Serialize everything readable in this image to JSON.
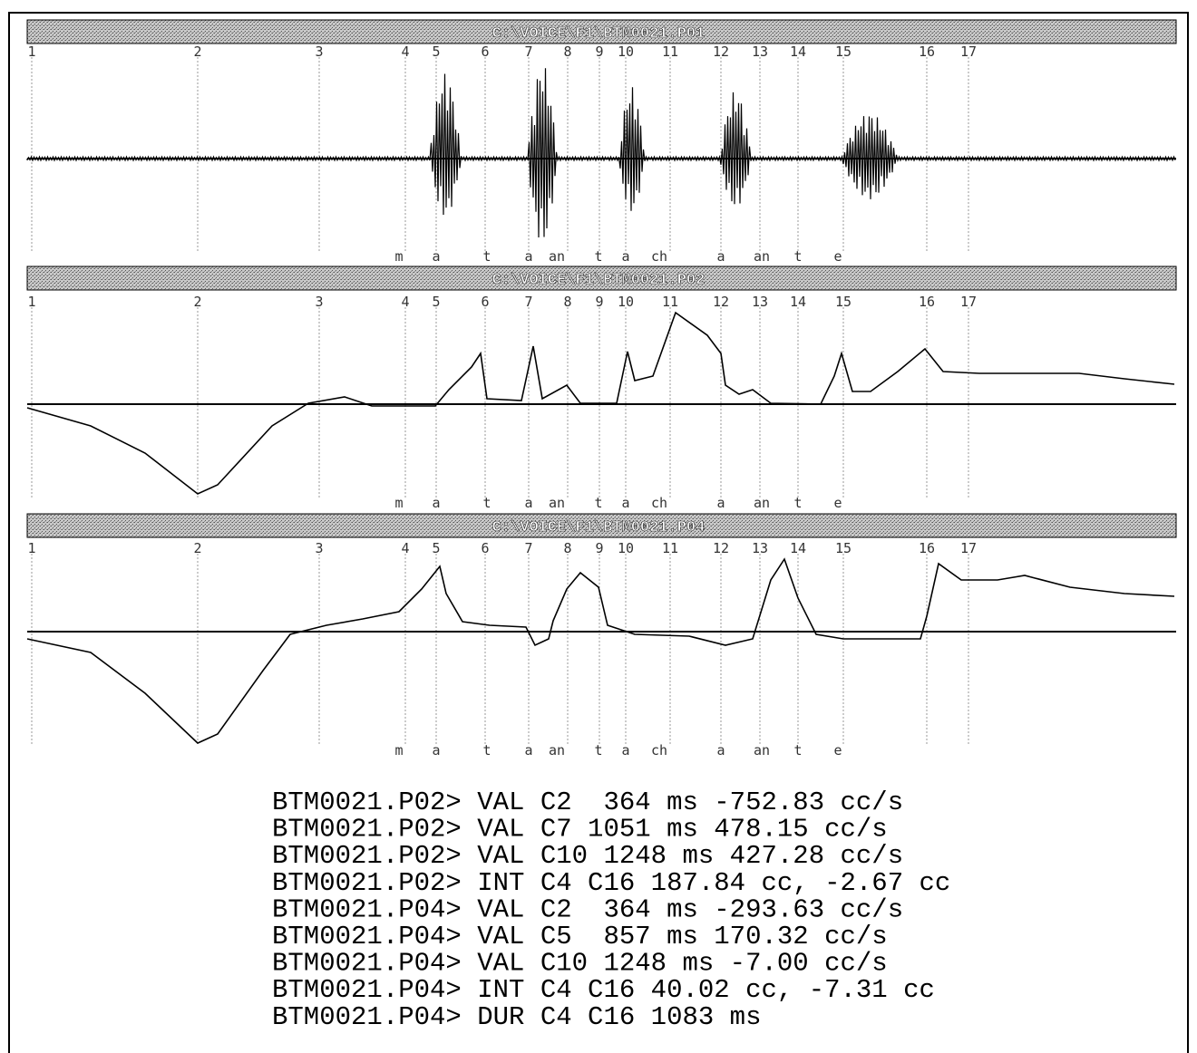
{
  "panels": [
    {
      "title": "C:\\VOICE\\F1\\BTM0021.P01",
      "cursors": [
        "1",
        "2",
        "3",
        "4",
        "5",
        "6",
        "7",
        "8",
        "9",
        "10",
        "11",
        "12",
        "13",
        "14",
        "15",
        "16",
        "17"
      ],
      "phonemes": [
        "m",
        "a",
        "t",
        "a",
        "an",
        "t",
        "a",
        "ch",
        "a",
        "an",
        "t",
        "e"
      ]
    },
    {
      "title": "C:\\VOICE\\F1\\BTM0021.P02",
      "cursors": [
        "1",
        "2",
        "3",
        "4",
        "5",
        "6",
        "7",
        "8",
        "9",
        "10",
        "11",
        "12",
        "13",
        "14",
        "15",
        "16",
        "17"
      ],
      "phonemes": [
        "m",
        "a",
        "t",
        "a",
        "an",
        "t",
        "a",
        "ch",
        "a",
        "an",
        "t",
        "e"
      ]
    },
    {
      "title": "C:\\VOICE\\F1\\BTM0021.P04",
      "cursors": [
        "1",
        "2",
        "3",
        "4",
        "5",
        "6",
        "7",
        "8",
        "9",
        "10",
        "11",
        "12",
        "13",
        "14",
        "15",
        "16",
        "17"
      ],
      "phonemes": [
        "m",
        "a",
        "t",
        "a",
        "an",
        "t",
        "a",
        "ch",
        "a",
        "an",
        "t",
        "e"
      ]
    }
  ],
  "console": [
    "BTM0021.P02> VAL C2  364 ms -752.83 cc/s",
    "BTM0021.P02> VAL C7 1051 ms 478.15 cc/s",
    "BTM0021.P02> VAL C10 1248 ms 427.28 cc/s",
    "BTM0021.P02> INT C4 C16 187.84 cc, -2.67 cc",
    "BTM0021.P04> VAL C2  364 ms -293.63 cc/s",
    "BTM0021.P04> VAL C5  857 ms 170.32 cc/s",
    "BTM0021.P04> VAL C10 1248 ms -7.00 cc/s",
    "BTM0021.P04> INT C4 C16 40.02 cc, -7.31 cc",
    "BTM0021.P04> DUR C4 C16 1083 ms"
  ]
}
